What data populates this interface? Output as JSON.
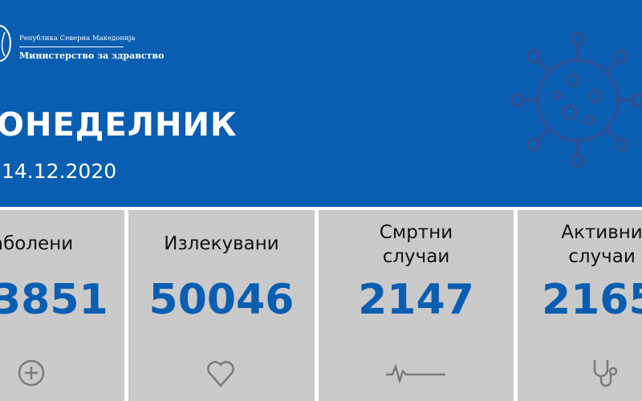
{
  "header": {
    "republic": "Република Северна Македонија",
    "ministry": "Министерство за здравство",
    "day": "ОНЕДЕЛНИК",
    "date": "14.12.2020"
  },
  "colors": {
    "brand_blue": "#0a5eb1",
    "card_grey": "#cacaca",
    "icon_grey": "#7a7a7a"
  },
  "cards": [
    {
      "label": "аболени",
      "value": "3851",
      "icon": "plus-circle-icon"
    },
    {
      "label": "Излекувани",
      "value": "50046",
      "icon": "heart-icon"
    },
    {
      "label_line1": "Смртни",
      "label_line2": "случаи",
      "value": "2147",
      "icon": "heartbeat-line-icon"
    },
    {
      "label_line1": "Активни",
      "label_line2": "случаи",
      "value": "2165",
      "icon": "stethoscope-icon"
    }
  ]
}
